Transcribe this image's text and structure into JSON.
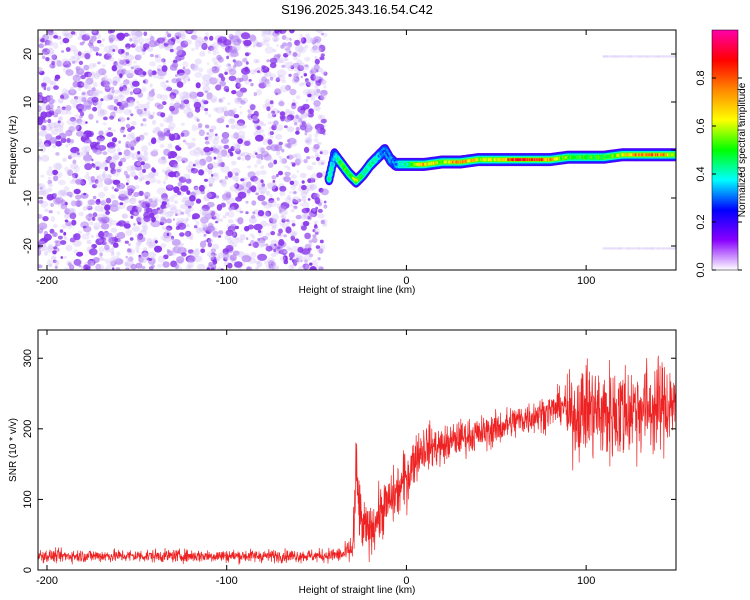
{
  "figure": {
    "title": "S196.2025.343.16.54.C42"
  },
  "colors": {
    "snr_line": "#ee2222",
    "spectrogram_noise": "#8a2be2",
    "background": "#ffffff"
  },
  "chart_data": [
    {
      "type": "heatmap",
      "title": "",
      "xlabel": "Height of straight line (km)",
      "ylabel": "Frequency (Hz)",
      "xlim": [
        -205,
        150
      ],
      "ylim": [
        -25,
        25
      ],
      "xticks": [
        -200,
        -100,
        0,
        100
      ],
      "xtick_labels": [
        "-200",
        "-100",
        "0",
        "100"
      ],
      "yticks": [
        20,
        10,
        0,
        -10,
        -20
      ],
      "ytick_labels": [
        "20",
        "10",
        "0",
        "-10",
        "-20"
      ],
      "colorbar": {
        "label": "Normalized spectral amplitude",
        "range": [
          0,
          1
        ],
        "ticks": [
          0.0,
          0.2,
          0.4,
          0.6,
          0.8
        ],
        "tick_labels": [
          "0.0",
          "0.2",
          "0.4",
          "0.6",
          "0.8"
        ],
        "colormap": [
          "#ffffff",
          "#8800ff",
          "#0000ff",
          "#00ffff",
          "#00ff00",
          "#ffff00",
          "#ff8800",
          "#ff0000",
          "#ff00aa"
        ]
      },
      "noise_region": {
        "x_range": [
          -205,
          -45
        ],
        "f_range": [
          -25,
          25
        ],
        "amplitude": 0.15
      },
      "ridge": {
        "x": [
          -43,
          -40,
          -36,
          -32,
          -28,
          -24,
          -20,
          -16,
          -12,
          -9,
          -6,
          -3,
          0,
          10,
          20,
          30,
          40,
          50,
          60,
          70,
          80,
          90,
          100,
          110,
          120,
          130,
          140,
          150
        ],
        "f": [
          -6,
          -1,
          -3,
          -5,
          -6.5,
          -5,
          -3,
          -1.5,
          0,
          -2,
          -3,
          -3,
          -3,
          -3,
          -2.5,
          -2.5,
          -2,
          -2,
          -2,
          -2,
          -2,
          -1.5,
          -1.5,
          -1.5,
          -1,
          -1,
          -1,
          -1
        ],
        "amplitude": [
          0.45,
          0.3,
          0.55,
          0.5,
          0.6,
          0.4,
          0.45,
          0.35,
          0.3,
          0.3,
          0.3,
          0.4,
          0.4,
          0.7,
          0.55,
          0.8,
          0.6,
          0.6,
          0.85,
          0.85,
          0.7,
          0.5,
          0.5,
          0.5,
          0.6,
          0.75,
          0.8,
          0.5
        ]
      },
      "faint_bands": [
        {
          "x_range": [
            110,
            150
          ],
          "f": 19.5,
          "amplitude": 0.05
        },
        {
          "x_range": [
            110,
            150
          ],
          "f": -20.5,
          "amplitude": 0.05
        }
      ]
    },
    {
      "type": "line",
      "title": "",
      "xlabel": "Height of straight line (km)",
      "ylabel": "SNR (10 * v/v)",
      "xlim": [
        -205,
        150
      ],
      "ylim": [
        0,
        340
      ],
      "xticks": [
        -200,
        -100,
        0,
        100
      ],
      "xtick_labels": [
        "-200",
        "-100",
        "0",
        "100"
      ],
      "yticks": [
        0,
        100,
        200,
        300
      ],
      "ytick_labels": [
        "0",
        "100",
        "200",
        "300"
      ],
      "series": [
        {
          "x": [
            -205,
            -150,
            -100,
            -50,
            -35,
            -30,
            -29,
            -28,
            -25,
            -20,
            -15,
            -10,
            -5,
            0,
            5,
            10,
            20,
            30,
            40,
            50,
            60,
            70,
            80,
            88,
            90,
            100,
            110,
            120,
            130,
            140,
            150
          ],
          "mean": [
            20,
            20,
            20,
            20,
            22,
            30,
            70,
            130,
            60,
            55,
            80,
            95,
            110,
            130,
            160,
            175,
            175,
            188,
            192,
            200,
            210,
            218,
            225,
            235,
            215,
            230,
            220,
            225,
            230,
            230,
            240
          ],
          "noise": [
            8,
            8,
            8,
            8,
            10,
            20,
            60,
            65,
            35,
            30,
            35,
            35,
            35,
            40,
            30,
            30,
            25,
            22,
            22,
            22,
            22,
            22,
            22,
            22,
            50,
            60,
            65,
            65,
            60,
            60,
            55
          ]
        }
      ]
    }
  ]
}
